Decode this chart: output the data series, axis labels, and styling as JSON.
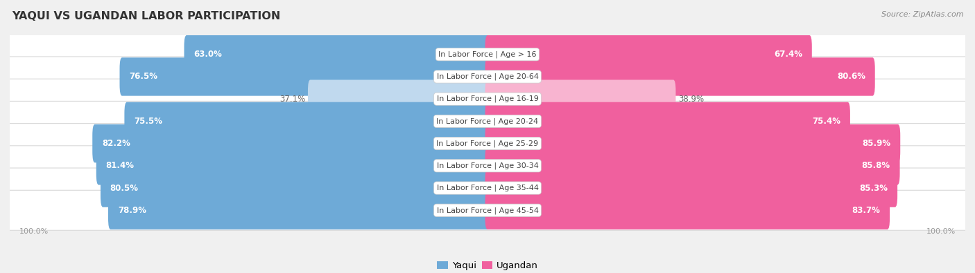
{
  "title": "YAQUI VS UGANDAN LABOR PARTICIPATION",
  "source": "Source: ZipAtlas.com",
  "categories": [
    "In Labor Force | Age > 16",
    "In Labor Force | Age 20-64",
    "In Labor Force | Age 16-19",
    "In Labor Force | Age 20-24",
    "In Labor Force | Age 25-29",
    "In Labor Force | Age 30-34",
    "In Labor Force | Age 35-44",
    "In Labor Force | Age 45-54"
  ],
  "yaqui_values": [
    63.0,
    76.5,
    37.1,
    75.5,
    82.2,
    81.4,
    80.5,
    78.9
  ],
  "ugandan_values": [
    67.4,
    80.6,
    38.9,
    75.4,
    85.9,
    85.8,
    85.3,
    83.7
  ],
  "yaqui_color": "#6eaad7",
  "yaqui_light_color": "#c0d9ee",
  "ugandan_color": "#f0609e",
  "ugandan_light_color": "#f8b4d0",
  "background_color": "#f0f0f0",
  "row_bg_color": "#ffffff",
  "row_border_color": "#d8d8d8",
  "text_color_dark": "#555555",
  "text_color_white": "#ffffff",
  "label_color_outside": "#666666",
  "max_value": 100.0,
  "bar_height": 0.72,
  "legend_yaqui": "Yaqui",
  "legend_ugandan": "Ugandan",
  "scale": 100
}
